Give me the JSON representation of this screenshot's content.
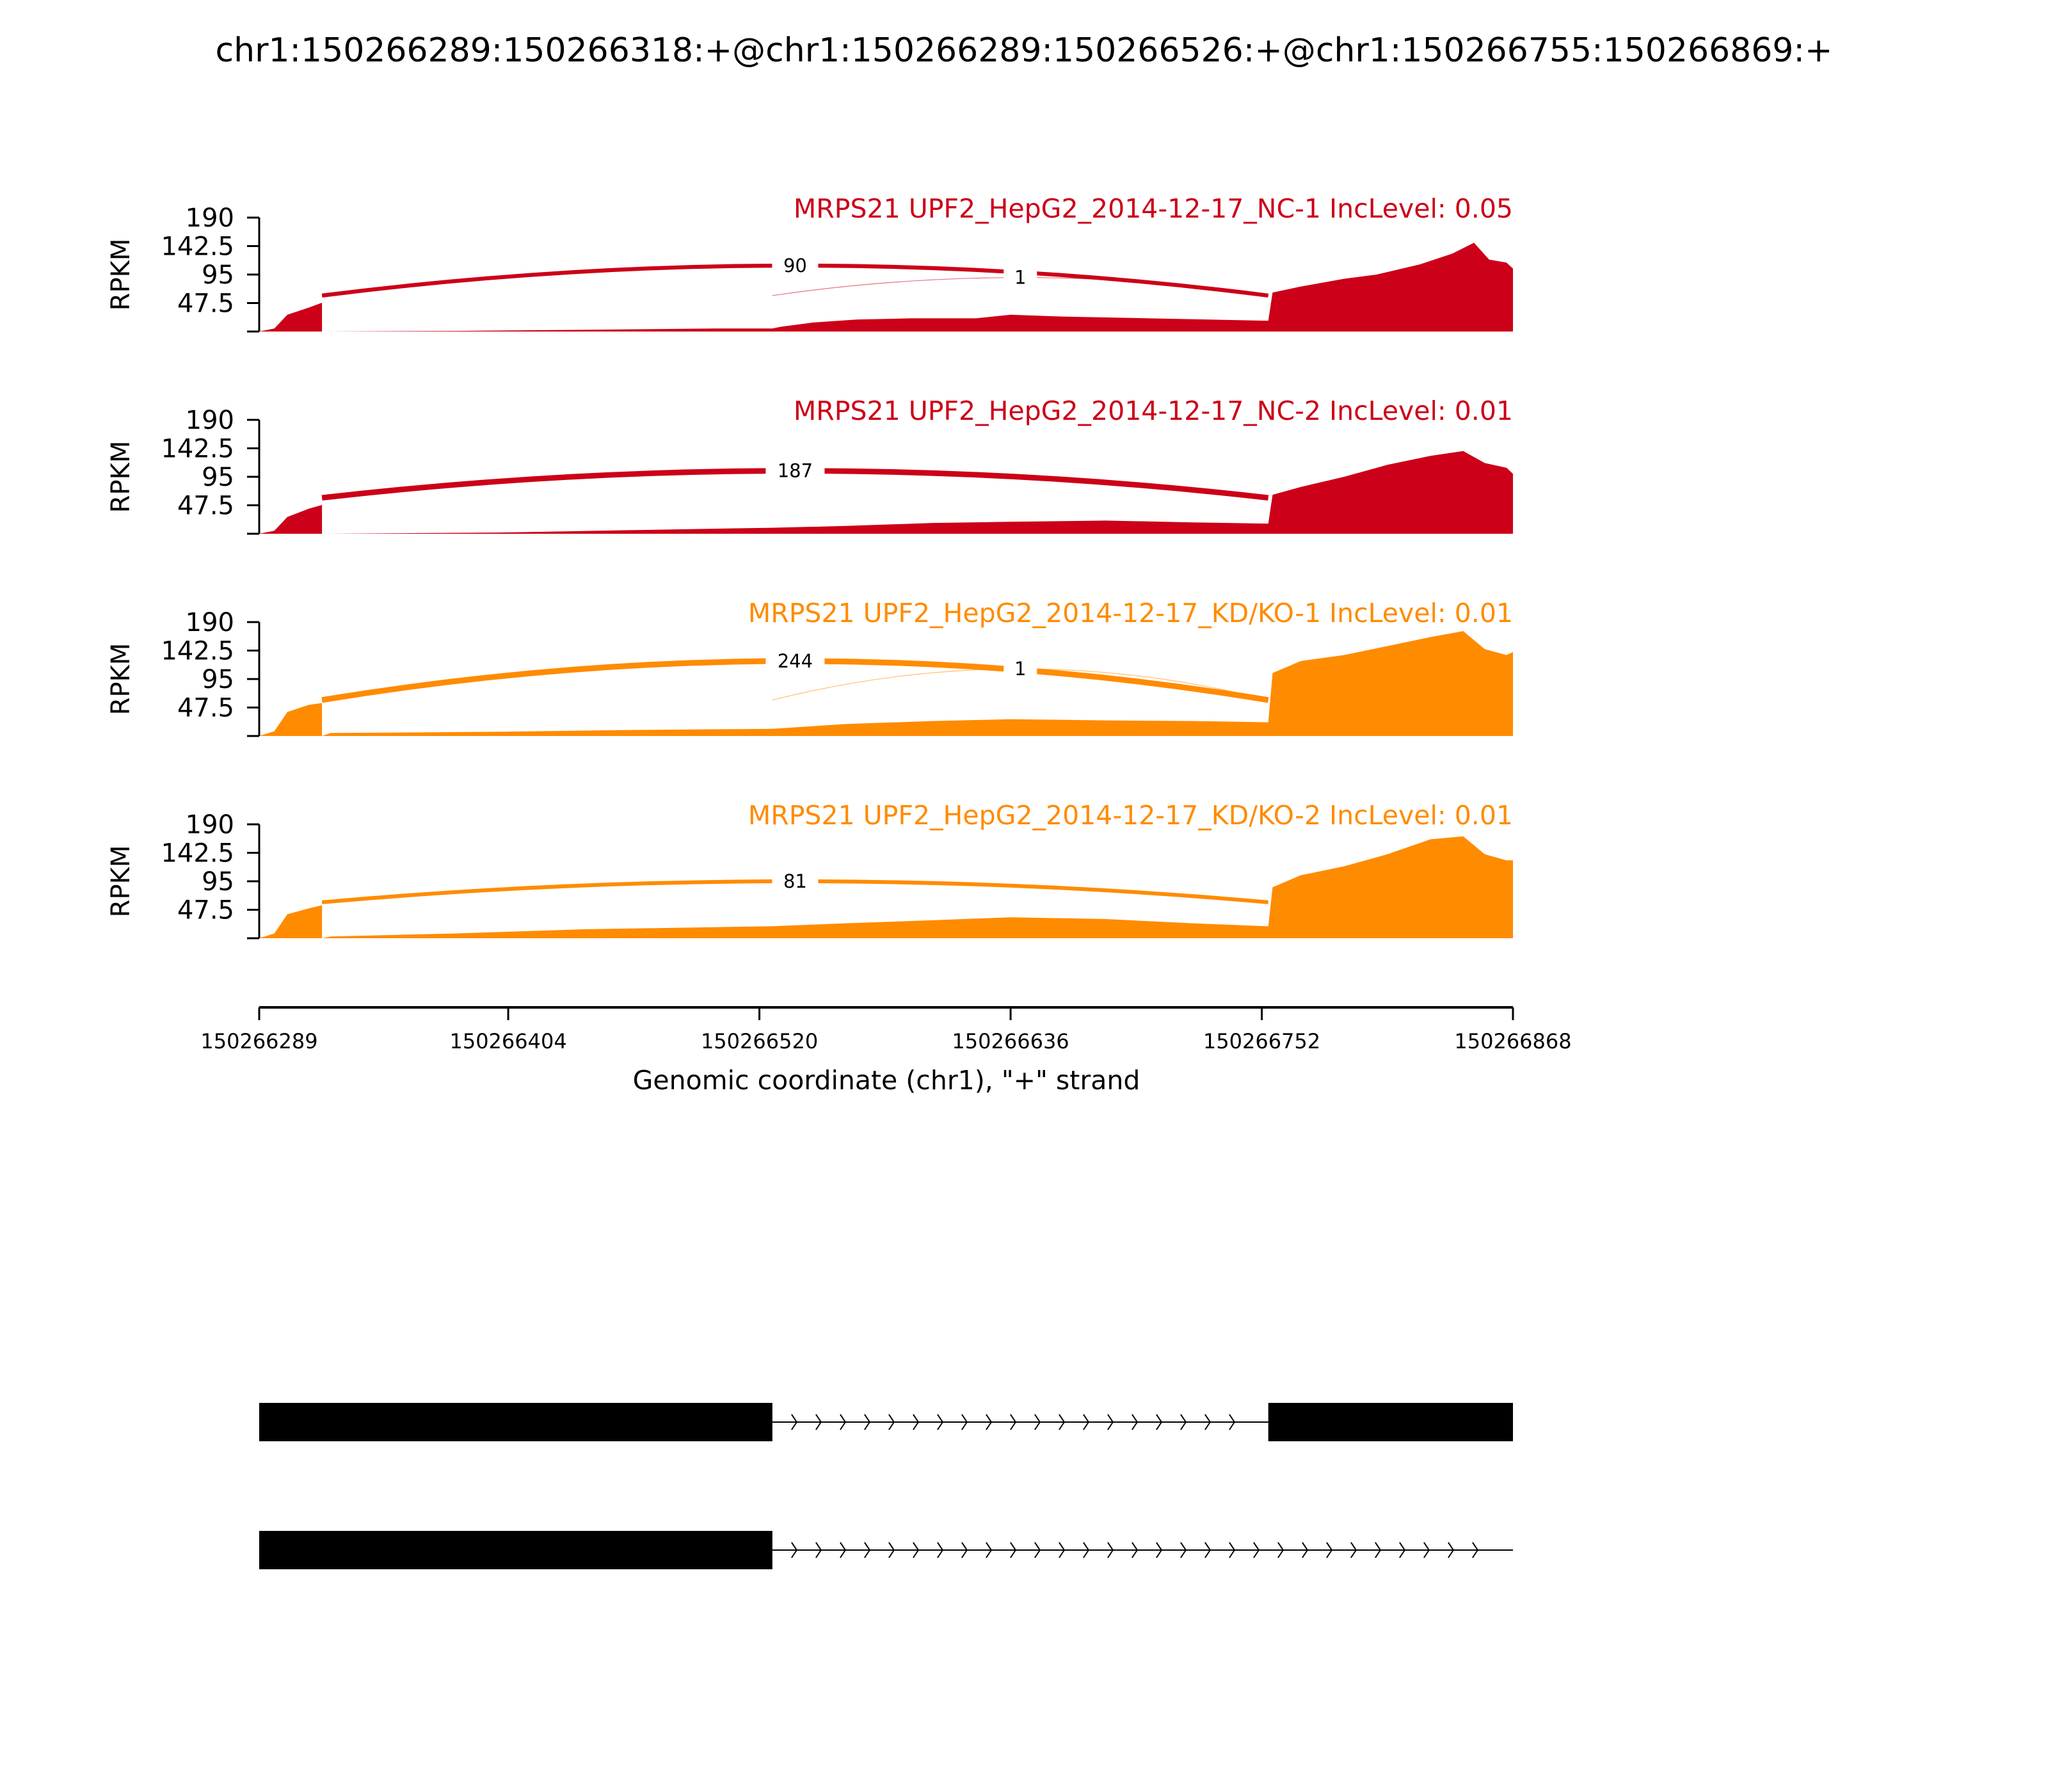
{
  "chart_data": {
    "type": "area",
    "title": "chr1:150266289:150266318:+@chr1:150266289:150266526:+@chr1:150266755:150266869:+",
    "ylabel": "RPKM",
    "xlabel": "Genomic coordinate (chr1), \"+\" strand",
    "xlim": [
      150266289,
      150266868
    ],
    "x_ticks": [
      "150266289",
      "150266404",
      "150266520",
      "150266636",
      "150266752",
      "150266868"
    ],
    "ylim": [
      0,
      190
    ],
    "y_ticks": [
      "190",
      "142.5",
      "95",
      "47.5"
    ],
    "colors": {
      "nc": "#cc0018",
      "kd": "#ff8b00"
    },
    "tracks": [
      {
        "label": "MRPS21 UPF2_HepG2_2014-12-17_NC-1 IncLevel: 0.05",
        "color": "#cc0018",
        "coverage": [
          [
            150266289,
            0
          ],
          [
            150266296,
            5
          ],
          [
            150266302,
            28
          ],
          [
            150266312,
            40
          ],
          [
            150266318,
            48
          ],
          [
            150266318,
            0
          ],
          [
            150266380,
            1
          ],
          [
            150266440,
            3
          ],
          [
            150266500,
            5
          ],
          [
            150266526,
            5
          ],
          [
            150266530,
            8
          ],
          [
            150266545,
            15
          ],
          [
            150266565,
            20
          ],
          [
            150266590,
            22
          ],
          [
            150266620,
            22
          ],
          [
            150266636,
            28
          ],
          [
            150266660,
            25
          ],
          [
            150266700,
            22
          ],
          [
            150266754,
            18
          ],
          [
            150266755,
            18
          ],
          [
            150266757,
            65
          ],
          [
            150266770,
            75
          ],
          [
            150266790,
            88
          ],
          [
            150266805,
            95
          ],
          [
            150266825,
            112
          ],
          [
            150266840,
            130
          ],
          [
            150266850,
            148
          ],
          [
            150266857,
            120
          ],
          [
            150266865,
            115
          ],
          [
            150266868,
            105
          ],
          [
            150266868,
            0
          ]
        ],
        "junctions": [
          {
            "from": 150266318,
            "to": 150266755,
            "reads": "90",
            "height": 110
          },
          {
            "from": 150266526,
            "to": 150266755,
            "reads": "1",
            "height": 90
          }
        ]
      },
      {
        "label": "MRPS21 UPF2_HepG2_2014-12-17_NC-2 IncLevel: 0.01",
        "color": "#cc0018",
        "coverage": [
          [
            150266289,
            0
          ],
          [
            150266296,
            5
          ],
          [
            150266302,
            28
          ],
          [
            150266312,
            42
          ],
          [
            150266318,
            48
          ],
          [
            150266318,
            0
          ],
          [
            150266400,
            2
          ],
          [
            150266460,
            6
          ],
          [
            150266526,
            10
          ],
          [
            150266560,
            13
          ],
          [
            150266600,
            18
          ],
          [
            150266636,
            20
          ],
          [
            150266680,
            22
          ],
          [
            150266720,
            19
          ],
          [
            150266754,
            17
          ],
          [
            150266755,
            17
          ],
          [
            150266757,
            65
          ],
          [
            150266770,
            78
          ],
          [
            150266790,
            95
          ],
          [
            150266810,
            115
          ],
          [
            150266830,
            130
          ],
          [
            150266845,
            138
          ],
          [
            150266855,
            118
          ],
          [
            150266865,
            110
          ],
          [
            150266868,
            100
          ],
          [
            150266868,
            0
          ]
        ],
        "junctions": [
          {
            "from": 150266318,
            "to": 150266755,
            "reads": "187",
            "height": 105
          }
        ]
      },
      {
        "label": "MRPS21 UPF2_HepG2_2014-12-17_KD/KO-1 IncLevel: 0.01",
        "color": "#ff8b00",
        "coverage": [
          [
            150266289,
            0
          ],
          [
            150266296,
            8
          ],
          [
            150266302,
            40
          ],
          [
            150266312,
            52
          ],
          [
            150266318,
            55
          ],
          [
            150266318,
            0
          ],
          [
            150266322,
            5
          ],
          [
            150266400,
            7
          ],
          [
            150266460,
            10
          ],
          [
            150266526,
            12
          ],
          [
            150266560,
            20
          ],
          [
            150266600,
            25
          ],
          [
            150266636,
            28
          ],
          [
            150266680,
            26
          ],
          [
            150266720,
            25
          ],
          [
            150266754,
            23
          ],
          [
            150266755,
            23
          ],
          [
            150266757,
            105
          ],
          [
            150266770,
            125
          ],
          [
            150266790,
            135
          ],
          [
            150266810,
            150
          ],
          [
            150266830,
            165
          ],
          [
            150266845,
            175
          ],
          [
            150266855,
            145
          ],
          [
            150266865,
            135
          ],
          [
            150266868,
            140
          ],
          [
            150266868,
            0
          ]
        ],
        "junctions": [
          {
            "from": 150266318,
            "to": 150266755,
            "reads": "244",
            "height": 125
          },
          {
            "from": 150266526,
            "to": 150266755,
            "reads": "1",
            "height": 112
          }
        ]
      },
      {
        "label": "MRPS21 UPF2_HepG2_2014-12-17_KD/KO-2 IncLevel: 0.01",
        "color": "#ff8b00",
        "coverage": [
          [
            150266289,
            0
          ],
          [
            150266296,
            8
          ],
          [
            150266302,
            40
          ],
          [
            150266312,
            50
          ],
          [
            150266318,
            55
          ],
          [
            150266318,
            0
          ],
          [
            150266322,
            3
          ],
          [
            150266380,
            8
          ],
          [
            150266440,
            15
          ],
          [
            150266526,
            20
          ],
          [
            150266560,
            25
          ],
          [
            150266600,
            30
          ],
          [
            150266636,
            35
          ],
          [
            150266680,
            32
          ],
          [
            150266720,
            25
          ],
          [
            150266754,
            20
          ],
          [
            150266755,
            20
          ],
          [
            150266757,
            85
          ],
          [
            150266770,
            105
          ],
          [
            150266790,
            120
          ],
          [
            150266810,
            140
          ],
          [
            150266830,
            165
          ],
          [
            150266845,
            170
          ],
          [
            150266855,
            140
          ],
          [
            150266865,
            130
          ],
          [
            150266868,
            130
          ],
          [
            150266868,
            0
          ]
        ],
        "junctions": [
          {
            "from": 150266318,
            "to": 150266755,
            "reads": "81",
            "height": 95
          }
        ]
      }
    ],
    "gene_models": [
      {
        "exons": [
          [
            150266289,
            150266526
          ],
          [
            150266755,
            150266868
          ]
        ],
        "intron": [
          150266526,
          150266755
        ]
      },
      {
        "exons": [
          [
            150266289,
            150266526
          ]
        ],
        "intron": [
          150266526,
          150266868
        ]
      }
    ]
  }
}
